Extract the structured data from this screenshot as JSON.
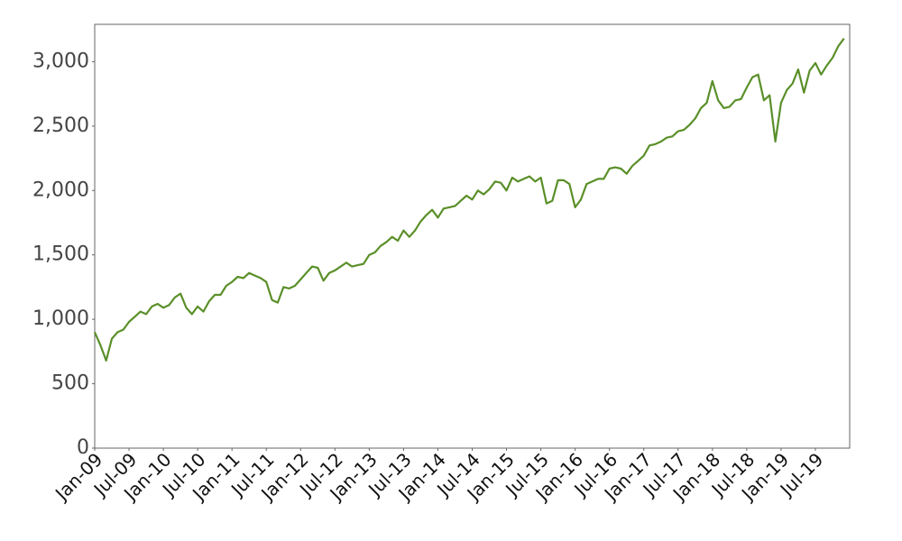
{
  "chart_data": {
    "type": "line",
    "x": [
      "2009-01",
      "2009-02",
      "2009-03",
      "2009-04",
      "2009-05",
      "2009-06",
      "2009-07",
      "2009-08",
      "2009-09",
      "2009-10",
      "2009-11",
      "2009-12",
      "2010-01",
      "2010-02",
      "2010-03",
      "2010-04",
      "2010-05",
      "2010-06",
      "2010-07",
      "2010-08",
      "2010-09",
      "2010-10",
      "2010-11",
      "2010-12",
      "2011-01",
      "2011-02",
      "2011-03",
      "2011-04",
      "2011-05",
      "2011-06",
      "2011-07",
      "2011-08",
      "2011-09",
      "2011-10",
      "2011-11",
      "2011-12",
      "2012-01",
      "2012-02",
      "2012-03",
      "2012-04",
      "2012-05",
      "2012-06",
      "2012-07",
      "2012-08",
      "2012-09",
      "2012-10",
      "2012-11",
      "2012-12",
      "2013-01",
      "2013-02",
      "2013-03",
      "2013-04",
      "2013-05",
      "2013-06",
      "2013-07",
      "2013-08",
      "2013-09",
      "2013-10",
      "2013-11",
      "2013-12",
      "2014-01",
      "2014-02",
      "2014-03",
      "2014-04",
      "2014-05",
      "2014-06",
      "2014-07",
      "2014-08",
      "2014-09",
      "2014-10",
      "2014-11",
      "2014-12",
      "2015-01",
      "2015-02",
      "2015-03",
      "2015-04",
      "2015-05",
      "2015-06",
      "2015-07",
      "2015-08",
      "2015-09",
      "2015-10",
      "2015-11",
      "2015-12",
      "2016-01",
      "2016-02",
      "2016-03",
      "2016-04",
      "2016-05",
      "2016-06",
      "2016-07",
      "2016-08",
      "2016-09",
      "2016-10",
      "2016-11",
      "2016-12",
      "2017-01",
      "2017-02",
      "2017-03",
      "2017-04",
      "2017-05",
      "2017-06",
      "2017-07",
      "2017-08",
      "2017-09",
      "2017-10",
      "2017-11",
      "2017-12",
      "2018-01",
      "2018-02",
      "2018-03",
      "2018-04",
      "2018-05",
      "2018-06",
      "2018-07",
      "2018-08",
      "2018-09",
      "2018-10",
      "2018-11",
      "2018-12",
      "2019-01",
      "2019-02",
      "2019-03",
      "2019-04",
      "2019-05",
      "2019-06",
      "2019-07",
      "2019-08",
      "2019-09",
      "2019-10",
      "2019-11",
      "2019-12"
    ],
    "values": [
      900,
      800,
      680,
      850,
      900,
      920,
      980,
      1020,
      1060,
      1040,
      1100,
      1120,
      1090,
      1110,
      1170,
      1200,
      1090,
      1040,
      1100,
      1060,
      1140,
      1190,
      1190,
      1260,
      1290,
      1330,
      1320,
      1360,
      1340,
      1320,
      1290,
      1150,
      1130,
      1250,
      1240,
      1260,
      1310,
      1360,
      1410,
      1400,
      1300,
      1360,
      1380,
      1410,
      1440,
      1410,
      1420,
      1430,
      1500,
      1520,
      1570,
      1600,
      1640,
      1610,
      1690,
      1640,
      1690,
      1760,
      1810,
      1850,
      1790,
      1860,
      1870,
      1880,
      1920,
      1960,
      1930,
      2000,
      1970,
      2010,
      2070,
      2060,
      2000,
      2100,
      2070,
      2090,
      2110,
      2070,
      2100,
      1900,
      1920,
      2080,
      2080,
      2050,
      1870,
      1930,
      2050,
      2070,
      2090,
      2090,
      2170,
      2180,
      2170,
      2130,
      2190,
      2230,
      2270,
      2350,
      2360,
      2380,
      2410,
      2420,
      2460,
      2470,
      2510,
      2560,
      2640,
      2680,
      2850,
      2700,
      2640,
      2650,
      2700,
      2710,
      2800,
      2880,
      2900,
      2700,
      2740,
      2380,
      2680,
      2780,
      2830,
      2940,
      2760,
      2930,
      2990,
      2900,
      2970,
      3030,
      3120,
      3180
    ],
    "color": "#5a8f29",
    "xlim": [
      "2009-01",
      "2019-12"
    ],
    "xticks": [
      {
        "value": "2009-01",
        "label": "Jan-09"
      },
      {
        "value": "2009-07",
        "label": "Jul-09"
      },
      {
        "value": "2010-01",
        "label": "Jan-10"
      },
      {
        "value": "2010-07",
        "label": "Jul-10"
      },
      {
        "value": "2011-01",
        "label": "Jan-11"
      },
      {
        "value": "2011-07",
        "label": "Jul-11"
      },
      {
        "value": "2012-01",
        "label": "Jan-12"
      },
      {
        "value": "2012-07",
        "label": "Jul-12"
      },
      {
        "value": "2013-01",
        "label": "Jan-13"
      },
      {
        "value": "2013-07",
        "label": "Jul-13"
      },
      {
        "value": "2014-01",
        "label": "Jan-14"
      },
      {
        "value": "2014-07",
        "label": "Jul-14"
      },
      {
        "value": "2015-01",
        "label": "Jan-15"
      },
      {
        "value": "2015-07",
        "label": "Jul-15"
      },
      {
        "value": "2016-01",
        "label": "Jan-16"
      },
      {
        "value": "2016-07",
        "label": "Jul-16"
      },
      {
        "value": "2017-01",
        "label": "Jan-17"
      },
      {
        "value": "2017-07",
        "label": "Jul-17"
      },
      {
        "value": "2018-01",
        "label": "Jan-18"
      },
      {
        "value": "2018-07",
        "label": "Jul-18"
      },
      {
        "value": "2019-01",
        "label": "Jan-19"
      },
      {
        "value": "2019-07",
        "label": "Jul-19"
      }
    ],
    "ylim": [
      0,
      3290
    ],
    "yticks": [
      0,
      500,
      {
        "value": 1000,
        "label": "1,000"
      },
      {
        "value": 1500,
        "label": "1,500"
      },
      {
        "value": 2000,
        "label": "2,000"
      },
      {
        "value": 2500,
        "label": "2,500"
      },
      {
        "value": 3000,
        "label": "3,000"
      }
    ],
    "grid": false
  }
}
